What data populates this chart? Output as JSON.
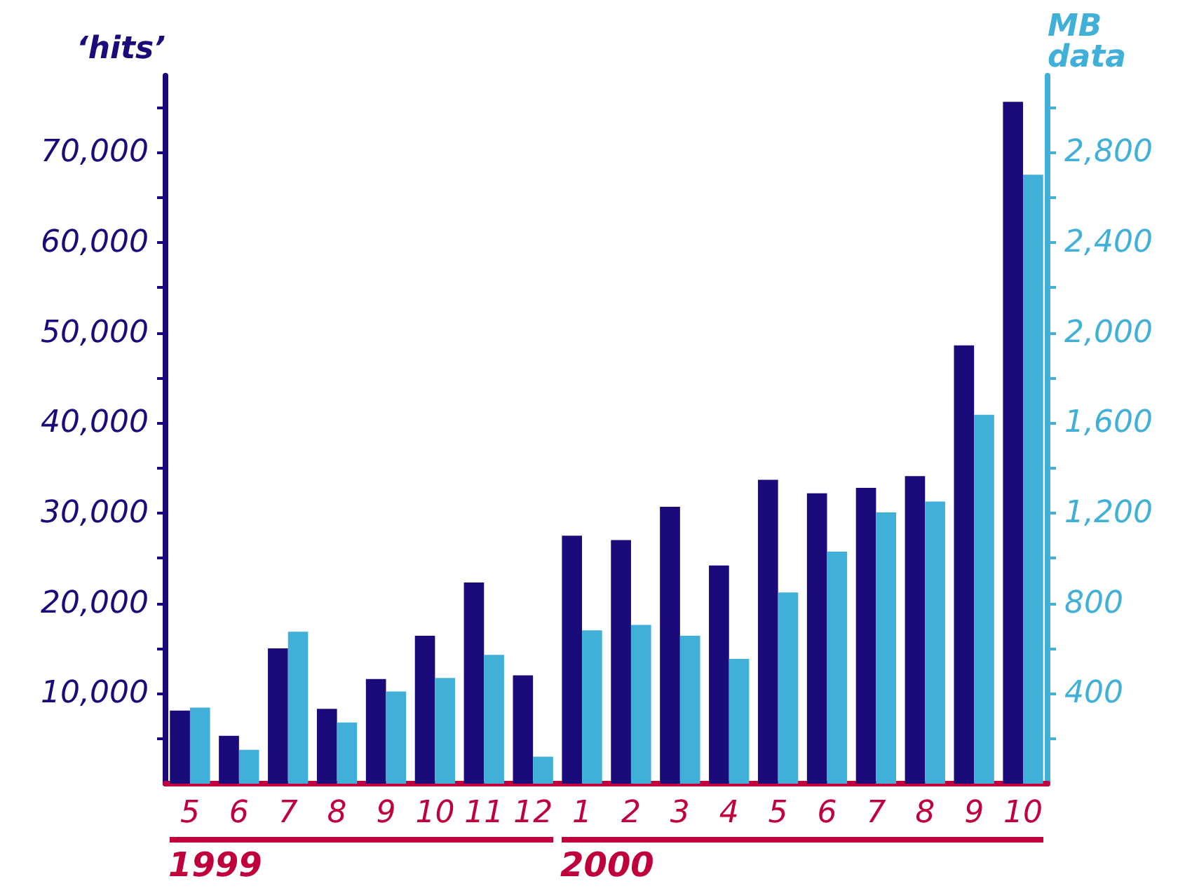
{
  "chart_data": {
    "type": "bar",
    "ylabel": "‘hits’",
    "y2label": "MB data",
    "categories": [
      "5",
      "6",
      "7",
      "8",
      "9",
      "10",
      "11",
      "12",
      "1",
      "2",
      "3",
      "4",
      "5",
      "6",
      "7",
      "8",
      "9",
      "10"
    ],
    "series": [
      {
        "color": "#1a0a7a",
        "values": [
          8100,
          5300,
          15000,
          8300,
          11600,
          16400,
          22300,
          12000,
          27500,
          27000,
          30700,
          24200,
          33700,
          32200,
          32800,
          34100,
          48600,
          75600
        ]
      },
      {
        "color": "#40b0d8",
        "axis": "y2",
        "values": [
          337,
          150,
          674,
          271,
          409,
          469,
          571,
          120,
          680,
          704,
          656,
          553,
          848,
          1029,
          1203,
          1251,
          1636,
          2701
        ]
      }
    ],
    "ylim": [
      0,
      78500
    ],
    "yticks": [
      {
        "value": 5000,
        "label": null
      },
      {
        "value": 10000,
        "label": "10,000"
      },
      {
        "value": 15000,
        "label": null
      },
      {
        "value": 20000,
        "label": "20,000"
      },
      {
        "value": 25000,
        "label": null
      },
      {
        "value": 30000,
        "label": "30,000"
      },
      {
        "value": 35000,
        "label": null
      },
      {
        "value": 40000,
        "label": "40,000"
      },
      {
        "value": 45000,
        "label": null
      },
      {
        "value": 50000,
        "label": "50,000"
      },
      {
        "value": 55000,
        "label": null
      },
      {
        "value": 60000,
        "label": "60,000"
      },
      {
        "value": 65000,
        "label": null
      },
      {
        "value": 70000,
        "label": "70,000"
      },
      {
        "value": 75000,
        "label": null
      }
    ],
    "y2lim": [
      0,
      3140
    ],
    "y2ticks": [
      {
        "value": 200,
        "label": null
      },
      400,
      {
        "value": 600,
        "label": null
      },
      800,
      {
        "value": 1000,
        "label": null
      },
      {
        "value": 1200,
        "label": "1,200"
      },
      {
        "value": 1400,
        "label": null
      },
      {
        "value": 1600,
        "label": "1,600"
      },
      {
        "value": 1800,
        "label": null
      },
      {
        "value": 2000,
        "label": "2,000"
      },
      {
        "value": 2200,
        "label": null
      },
      {
        "value": 2400,
        "label": "2,400"
      },
      {
        "value": 2600,
        "label": null
      },
      {
        "value": 2800,
        "label": "2,800"
      },
      {
        "value": 3000,
        "label": null
      }
    ],
    "annotations": [
      "1999",
      "2000"
    ],
    "grid": false
  }
}
